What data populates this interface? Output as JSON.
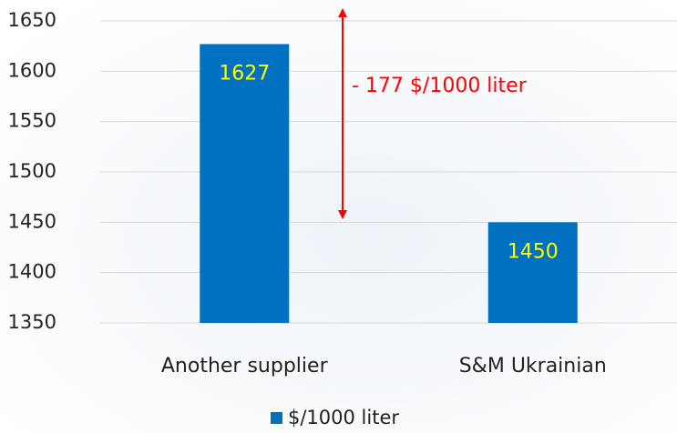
{
  "chart_data": {
    "type": "bar",
    "categories": [
      "Another supplier",
      "S&M Ukrainian"
    ],
    "series": [
      {
        "name": "$/1000 liter",
        "color": "#0070c0",
        "values": [
          1627,
          1450
        ]
      }
    ],
    "ylim": [
      1350,
      1650
    ],
    "yticks": [
      1350,
      1400,
      1450,
      1500,
      1550,
      1600,
      1650
    ],
    "grid": true,
    "legend": "bottom",
    "annotation": "- 177 $/1000 liter"
  }
}
